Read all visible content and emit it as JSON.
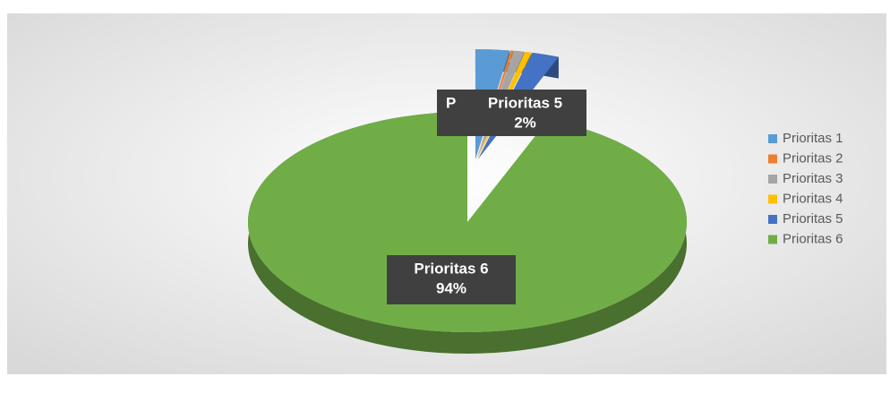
{
  "chart_data": {
    "type": "pie",
    "style": "3d-exploded",
    "categories": [
      "Prioritas 1",
      "Prioritas 2",
      "Prioritas 3",
      "Prioritas 4",
      "Prioritas 5",
      "Prioritas 6"
    ],
    "values": [
      2.5,
      0.2,
      0.8,
      0.5,
      2,
      94
    ],
    "value_labels": [
      null,
      null,
      null,
      null,
      "2%",
      "94%"
    ],
    "colors": [
      "#5b9bd5",
      "#ed7d31",
      "#a5a5a5",
      "#ffc000",
      "#4472c4",
      "#70ad47"
    ],
    "truncated_label": "P",
    "legend": "right"
  }
}
